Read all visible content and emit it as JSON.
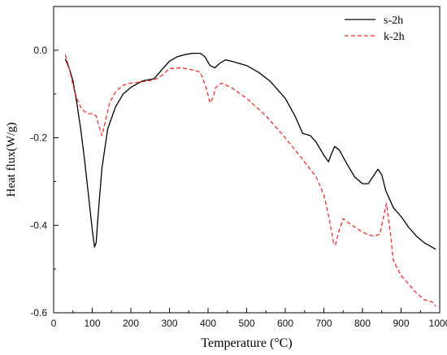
{
  "chart_data": {
    "type": "line",
    "xlabel": "Temperature (°C)",
    "ylabel": "Heat flux(W/g)",
    "xlim": [
      0,
      1000
    ],
    "ylim": [
      -0.6,
      0.1
    ],
    "xticks": [
      0,
      100,
      200,
      300,
      400,
      500,
      600,
      700,
      800,
      900,
      1000
    ],
    "yticks": [
      -0.6,
      -0.4,
      -0.2,
      0.0
    ],
    "ytick_labels": [
      "-0.6",
      "-0.4",
      "-0.2",
      "0.0"
    ],
    "legend_position": "top-right",
    "series": [
      {
        "name": "s-2h",
        "color": "#000000",
        "dash": "solid",
        "points": [
          [
            30,
            -0.02
          ],
          [
            40,
            -0.04
          ],
          [
            50,
            -0.07
          ],
          [
            60,
            -0.12
          ],
          [
            70,
            -0.18
          ],
          [
            80,
            -0.25
          ],
          [
            90,
            -0.33
          ],
          [
            100,
            -0.41
          ],
          [
            106,
            -0.45
          ],
          [
            110,
            -0.44
          ],
          [
            115,
            -0.38
          ],
          [
            125,
            -0.27
          ],
          [
            140,
            -0.18
          ],
          [
            160,
            -0.13
          ],
          [
            180,
            -0.1
          ],
          [
            200,
            -0.085
          ],
          [
            230,
            -0.07
          ],
          [
            260,
            -0.065
          ],
          [
            280,
            -0.045
          ],
          [
            300,
            -0.025
          ],
          [
            320,
            -0.015
          ],
          [
            340,
            -0.01
          ],
          [
            360,
            -0.007
          ],
          [
            380,
            -0.007
          ],
          [
            392,
            -0.015
          ],
          [
            405,
            -0.035
          ],
          [
            418,
            -0.04
          ],
          [
            430,
            -0.03
          ],
          [
            445,
            -0.022
          ],
          [
            460,
            -0.025
          ],
          [
            500,
            -0.035
          ],
          [
            530,
            -0.05
          ],
          [
            560,
            -0.07
          ],
          [
            600,
            -0.11
          ],
          [
            625,
            -0.15
          ],
          [
            645,
            -0.19
          ],
          [
            665,
            -0.195
          ],
          [
            680,
            -0.21
          ],
          [
            700,
            -0.24
          ],
          [
            712,
            -0.255
          ],
          [
            718,
            -0.24
          ],
          [
            728,
            -0.22
          ],
          [
            740,
            -0.228
          ],
          [
            760,
            -0.26
          ],
          [
            780,
            -0.29
          ],
          [
            800,
            -0.305
          ],
          [
            815,
            -0.305
          ],
          [
            830,
            -0.285
          ],
          [
            840,
            -0.272
          ],
          [
            850,
            -0.285
          ],
          [
            860,
            -0.32
          ],
          [
            880,
            -0.36
          ],
          [
            900,
            -0.38
          ],
          [
            920,
            -0.405
          ],
          [
            940,
            -0.425
          ],
          [
            960,
            -0.44
          ],
          [
            980,
            -0.45
          ],
          [
            990,
            -0.455
          ]
        ]
      },
      {
        "name": "k-2h",
        "color": "#ff2a2a",
        "dash": "dashed",
        "points": [
          [
            30,
            -0.01
          ],
          [
            40,
            -0.04
          ],
          [
            50,
            -0.08
          ],
          [
            60,
            -0.11
          ],
          [
            70,
            -0.13
          ],
          [
            80,
            -0.14
          ],
          [
            90,
            -0.145
          ],
          [
            100,
            -0.145
          ],
          [
            110,
            -0.15
          ],
          [
            118,
            -0.175
          ],
          [
            125,
            -0.195
          ],
          [
            132,
            -0.17
          ],
          [
            145,
            -0.12
          ],
          [
            160,
            -0.095
          ],
          [
            180,
            -0.08
          ],
          [
            200,
            -0.075
          ],
          [
            230,
            -0.072
          ],
          [
            260,
            -0.068
          ],
          [
            280,
            -0.058
          ],
          [
            300,
            -0.042
          ],
          [
            330,
            -0.04
          ],
          [
            360,
            -0.045
          ],
          [
            380,
            -0.05
          ],
          [
            395,
            -0.085
          ],
          [
            405,
            -0.12
          ],
          [
            412,
            -0.11
          ],
          [
            420,
            -0.085
          ],
          [
            435,
            -0.075
          ],
          [
            460,
            -0.085
          ],
          [
            500,
            -0.11
          ],
          [
            550,
            -0.15
          ],
          [
            600,
            -0.2
          ],
          [
            650,
            -0.255
          ],
          [
            680,
            -0.29
          ],
          [
            700,
            -0.33
          ],
          [
            715,
            -0.39
          ],
          [
            725,
            -0.44
          ],
          [
            730,
            -0.445
          ],
          [
            740,
            -0.41
          ],
          [
            750,
            -0.385
          ],
          [
            765,
            -0.395
          ],
          [
            790,
            -0.41
          ],
          [
            810,
            -0.42
          ],
          [
            830,
            -0.425
          ],
          [
            845,
            -0.42
          ],
          [
            855,
            -0.38
          ],
          [
            862,
            -0.35
          ],
          [
            870,
            -0.4
          ],
          [
            880,
            -0.48
          ],
          [
            900,
            -0.515
          ],
          [
            920,
            -0.535
          ],
          [
            940,
            -0.555
          ],
          [
            960,
            -0.57
          ],
          [
            980,
            -0.575
          ],
          [
            990,
            -0.585
          ]
        ]
      }
    ]
  }
}
